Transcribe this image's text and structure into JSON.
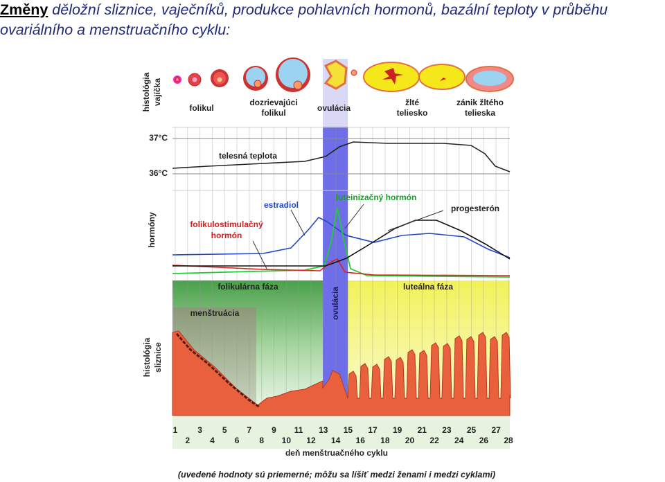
{
  "title": {
    "bold": "Změny",
    "rest": "děložní sliznice, vaječníků, produkce pohlavních hormonů, bazální teploty v průběhu ovariálního a menstruačního cyklu:"
  },
  "diagram": {
    "row_labels": [
      [
        "histológia",
        "vajíčka"
      ],
      "hormóny",
      [
        "histológia",
        "sliznice"
      ]
    ],
    "stages": [
      [
        "folikul"
      ],
      [
        "dozrievajúci",
        "folikul"
      ],
      [
        "ovulácia"
      ],
      [
        "žlté",
        "teliesko"
      ],
      [
        "zánik žltého",
        "telieska"
      ]
    ],
    "temperature": {
      "ticks": [
        "37°C",
        "36°C"
      ],
      "label": "telesná teplota"
    },
    "hormones": {
      "estradiol": "estradiol",
      "lh": "luteinizačný hormón",
      "progesterone": "progesterón",
      "fsh": [
        "folikulostimulačný",
        "hormón"
      ]
    },
    "phases": {
      "follicular": "folikulárna fáza",
      "ovulation": "ovulácia",
      "luteal": "luteálna fáza",
      "menstruation": "menštruácia"
    },
    "days": [
      1,
      2,
      3,
      4,
      5,
      6,
      7,
      8,
      9,
      10,
      11,
      12,
      13,
      14,
      15,
      16,
      17,
      18,
      19,
      20,
      21,
      22,
      23,
      24,
      25,
      26,
      27,
      28
    ],
    "x_label": "deň menštruačného cyklu",
    "note": "(uvedené hodnoty sú priemerné; môžu sa líšiť medzi ženami i medzi cyklami)"
  }
}
